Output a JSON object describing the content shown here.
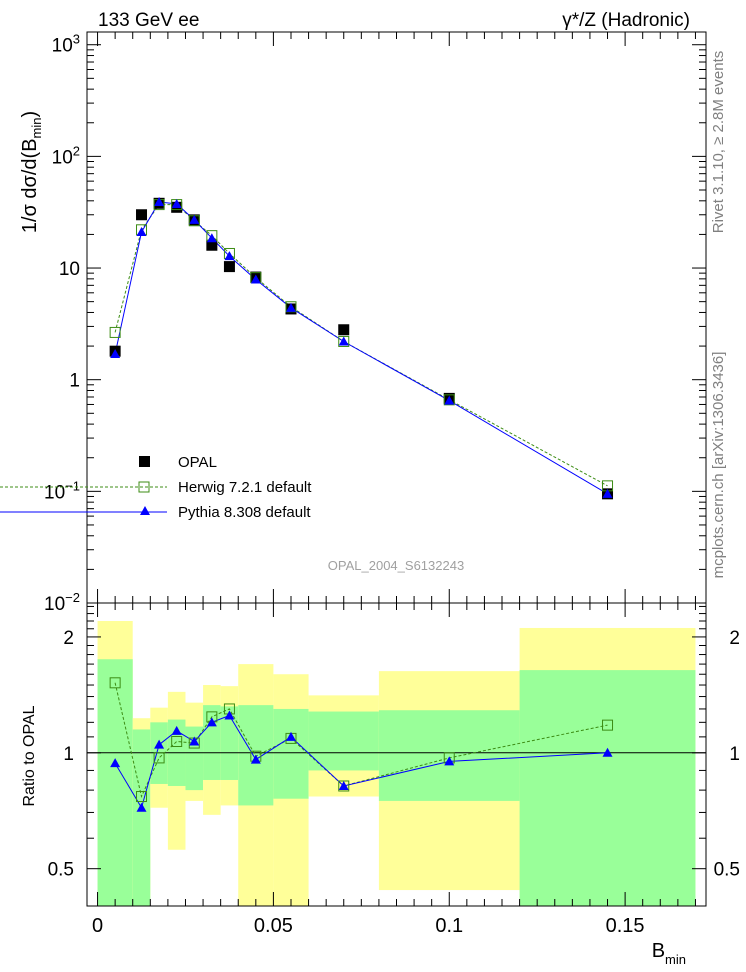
{
  "header": {
    "left": "133 GeV ee",
    "right": "γ*/Z (Hadronic)"
  },
  "side": {
    "rivet": "Rivet 3.1.10, ≥ 2.8M events",
    "mcplots": "mcplots.cern.ch [arXiv:1306.3436]"
  },
  "analysis_id": "OPAL_2004_S6132243",
  "colors": {
    "data": "#000000",
    "herwig": "#3c8c14",
    "pythia": "#0000ff",
    "band_inner": "#99ff99",
    "band_outer": "#ffff99"
  },
  "chart_data": [
    {
      "type": "scatter",
      "panel": "main",
      "ylabel": "1/σ dσ/d(B_min)",
      "yscale": "log",
      "ylim": [
        0.01,
        1300
      ],
      "xlim": [
        -0.003,
        0.173
      ],
      "y_ticks": [
        "10^-2",
        "10^-1",
        "1",
        "10",
        "10^2",
        "10^3"
      ],
      "legend_position": "middle-left",
      "series": [
        {
          "name": "OPAL",
          "style": "markers",
          "x": [
            0.005,
            0.0125,
            0.0175,
            0.0225,
            0.0275,
            0.0325,
            0.0375,
            0.045,
            0.055,
            0.07,
            0.1,
            0.145
          ],
          "y": [
            1.8,
            30,
            38,
            35,
            27,
            16,
            10.3,
            8.3,
            4.3,
            2.8,
            0.68,
            0.095
          ]
        },
        {
          "name": "Herwig 7.2.1 default",
          "style": "dashed-open-squares",
          "x": [
            0.005,
            0.0125,
            0.0175,
            0.0225,
            0.0275,
            0.0325,
            0.0375,
            0.045,
            0.055,
            0.07,
            0.1,
            0.145
          ],
          "y": [
            2.65,
            22,
            37,
            37,
            26.5,
            19.5,
            13.5,
            8.2,
            4.5,
            2.2,
            0.66,
            0.112
          ]
        },
        {
          "name": "Pythia 8.308 default",
          "style": "solid-triangles",
          "x": [
            0.005,
            0.0125,
            0.0175,
            0.0225,
            0.0275,
            0.0325,
            0.0375,
            0.045,
            0.055,
            0.07,
            0.1,
            0.145
          ],
          "y": [
            1.7,
            21,
            39,
            37.5,
            27,
            18.5,
            12.8,
            7.9,
            4.4,
            2.2,
            0.65,
            0.095
          ]
        }
      ]
    },
    {
      "type": "scatter",
      "panel": "ratio",
      "ylabel": "Ratio to OPAL",
      "xlabel": "B_min",
      "yscale": "log",
      "ylim": [
        0.4,
        2.45
      ],
      "xlim": [
        -0.003,
        0.173
      ],
      "y_ticks": [
        "0.5",
        "1",
        "2"
      ],
      "x_ticks": [
        "0",
        "0.05",
        "0.1",
        "0.15"
      ],
      "bands": {
        "edges": [
          0,
          0.01,
          0.015,
          0.02,
          0.025,
          0.03,
          0.035,
          0.04,
          0.05,
          0.06,
          0.08,
          0.12,
          0.17
        ],
        "inner_low": [
          0.4,
          0.4,
          0.83,
          0.82,
          0.8,
          0.85,
          0.85,
          0.73,
          0.76,
          0.9,
          0.75,
          0.36
        ],
        "inner_high": [
          1.75,
          1.15,
          1.2,
          1.22,
          1.17,
          1.33,
          1.32,
          1.33,
          1.3,
          1.28,
          1.29,
          1.64
        ],
        "outer_low": [
          0.4,
          0.4,
          0.72,
          0.56,
          0.75,
          0.69,
          0.73,
          0.35,
          0.4,
          0.77,
          0.44,
          0.35
        ],
        "outer_high": [
          2.2,
          1.23,
          1.31,
          1.44,
          1.35,
          1.5,
          1.49,
          1.7,
          1.6,
          1.41,
          1.63,
          2.11
        ]
      },
      "series": [
        {
          "name": "Herwig 7.2.1 default",
          "x": [
            0.005,
            0.0125,
            0.0175,
            0.0225,
            0.0275,
            0.0325,
            0.0375,
            0.045,
            0.055,
            0.07,
            0.1,
            0.145
          ],
          "y": [
            1.52,
            0.77,
            0.97,
            1.07,
            1.06,
            1.24,
            1.3,
            0.98,
            1.09,
            0.82,
            0.97,
            1.18
          ]
        },
        {
          "name": "Pythia 8.308 default",
          "x": [
            0.005,
            0.0125,
            0.0175,
            0.0225,
            0.0275,
            0.0325,
            0.0375,
            0.045,
            0.055,
            0.07,
            0.1,
            0.145
          ],
          "y": [
            0.94,
            0.72,
            1.05,
            1.14,
            1.07,
            1.2,
            1.25,
            0.96,
            1.1,
            0.82,
            0.95,
            1.0
          ]
        }
      ]
    }
  ]
}
